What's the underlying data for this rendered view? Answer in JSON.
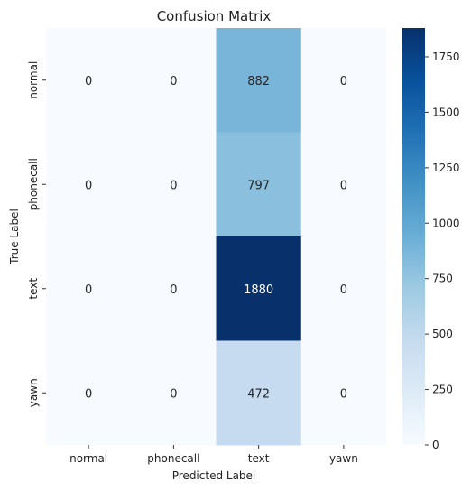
{
  "chart_data": {
    "type": "heatmap",
    "title": "Confusion Matrix",
    "xlabel": "Predicted Label",
    "ylabel": "True Label",
    "x_categories": [
      "normal",
      "phonecall",
      "text",
      "yawn"
    ],
    "y_categories": [
      "normal",
      "phonecall",
      "text",
      "yawn"
    ],
    "values": [
      [
        0,
        0,
        882,
        0
      ],
      [
        0,
        0,
        797,
        0
      ],
      [
        0,
        0,
        1880,
        0
      ],
      [
        0,
        0,
        472,
        0
      ]
    ],
    "colormap": "Blues",
    "colorbar": {
      "range": [
        0,
        1880
      ],
      "ticks": [
        0,
        250,
        500,
        750,
        1000,
        1250,
        1500,
        1750
      ]
    }
  }
}
